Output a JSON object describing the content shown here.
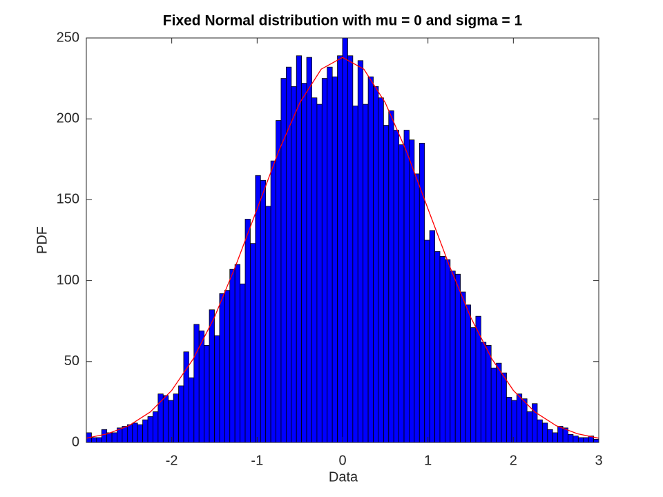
{
  "chart_data": {
    "type": "histogram",
    "title": "Fixed Normal distribution with mu = 0 and sigma = 1",
    "x_label": "Data",
    "y_label": "PDF",
    "bins": [
      -3,
      -2.94,
      -2.88,
      -2.82,
      -2.76,
      -2.7,
      -2.64,
      -2.58,
      -2.52,
      -2.46,
      -2.4,
      -2.34,
      -2.28,
      -2.22,
      -2.16,
      -2.1,
      -2.04,
      -1.98,
      -1.92,
      -1.86,
      -1.8,
      -1.74,
      -1.68,
      -1.62,
      -1.56,
      -1.5,
      -1.44,
      -1.38,
      -1.32,
      -1.26,
      -1.2,
      -1.14,
      -1.08,
      -1.02,
      -0.96,
      -0.9,
      -0.84,
      -0.78,
      -0.72,
      -0.66,
      -0.6,
      -0.54,
      -0.48,
      -0.42,
      -0.36,
      -0.3,
      -0.24,
      -0.18,
      -0.12,
      -0.06,
      0,
      0.06,
      0.12,
      0.18,
      0.24,
      0.3,
      0.36,
      0.42,
      0.48,
      0.54,
      0.6,
      0.66,
      0.72,
      0.78,
      0.84,
      0.9,
      0.96,
      1.02,
      1.08,
      1.14,
      1.2,
      1.26,
      1.32,
      1.38,
      1.44,
      1.5,
      1.56,
      1.62,
      1.68,
      1.74,
      1.8,
      1.86,
      1.92,
      1.98,
      2.04,
      2.1,
      2.16,
      2.22,
      2.28,
      2.34,
      2.4,
      2.46,
      2.52,
      2.58,
      2.64,
      2.7,
      2.76,
      2.82,
      2.88,
      2.94,
      3
    ],
    "counts": [
      6,
      3,
      3,
      8,
      6,
      6,
      9,
      10,
      11,
      12,
      11,
      14,
      16,
      19,
      30,
      29,
      26,
      30,
      35,
      56,
      40,
      73,
      69,
      60,
      82,
      66,
      92,
      94,
      107,
      110,
      98,
      138,
      123,
      165,
      162,
      146,
      174,
      199,
      225,
      232,
      220,
      239,
      222,
      238,
      213,
      209,
      225,
      232,
      226,
      239,
      250,
      239,
      208,
      236,
      209,
      226,
      220,
      213,
      196,
      205,
      193,
      184,
      193,
      187,
      166,
      185,
      125,
      131,
      118,
      115,
      113,
      106,
      104,
      93,
      85,
      71,
      78,
      62,
      60,
      46,
      49,
      43,
      28,
      26,
      30,
      27,
      19,
      24,
      14,
      12,
      8,
      6,
      10,
      9,
      5,
      4,
      3,
      3,
      4,
      2
    ],
    "color": "#0000ff",
    "edgecolor": "#000000",
    "curve": {
      "color": "#ff0000",
      "x": [
        -3,
        -2.75,
        -2.5,
        -2.25,
        -2,
        -1.75,
        -1.5,
        -1.25,
        -1,
        -0.75,
        -0.5,
        -0.25,
        0,
        0.25,
        0.5,
        0.75,
        1,
        1.25,
        1.5,
        1.75,
        2,
        2.25,
        2.5,
        2.75,
        3
      ],
      "y": [
        2.64,
        5.4,
        10.43,
        18.9,
        32.2,
        51.5,
        77.4,
        109.4,
        144.4,
        179.7,
        210,
        230.7,
        238,
        230.7,
        210,
        179.7,
        144.4,
        109.4,
        77.4,
        51.5,
        32.2,
        18.9,
        10.43,
        5.4,
        2.64
      ]
    },
    "xlim": [
      -3,
      3
    ],
    "ylim": [
      0,
      250
    ],
    "xticks": [
      -2,
      -1,
      0,
      1,
      2,
      3
    ],
    "yticks": [
      0,
      50,
      100,
      150,
      200,
      250
    ]
  }
}
